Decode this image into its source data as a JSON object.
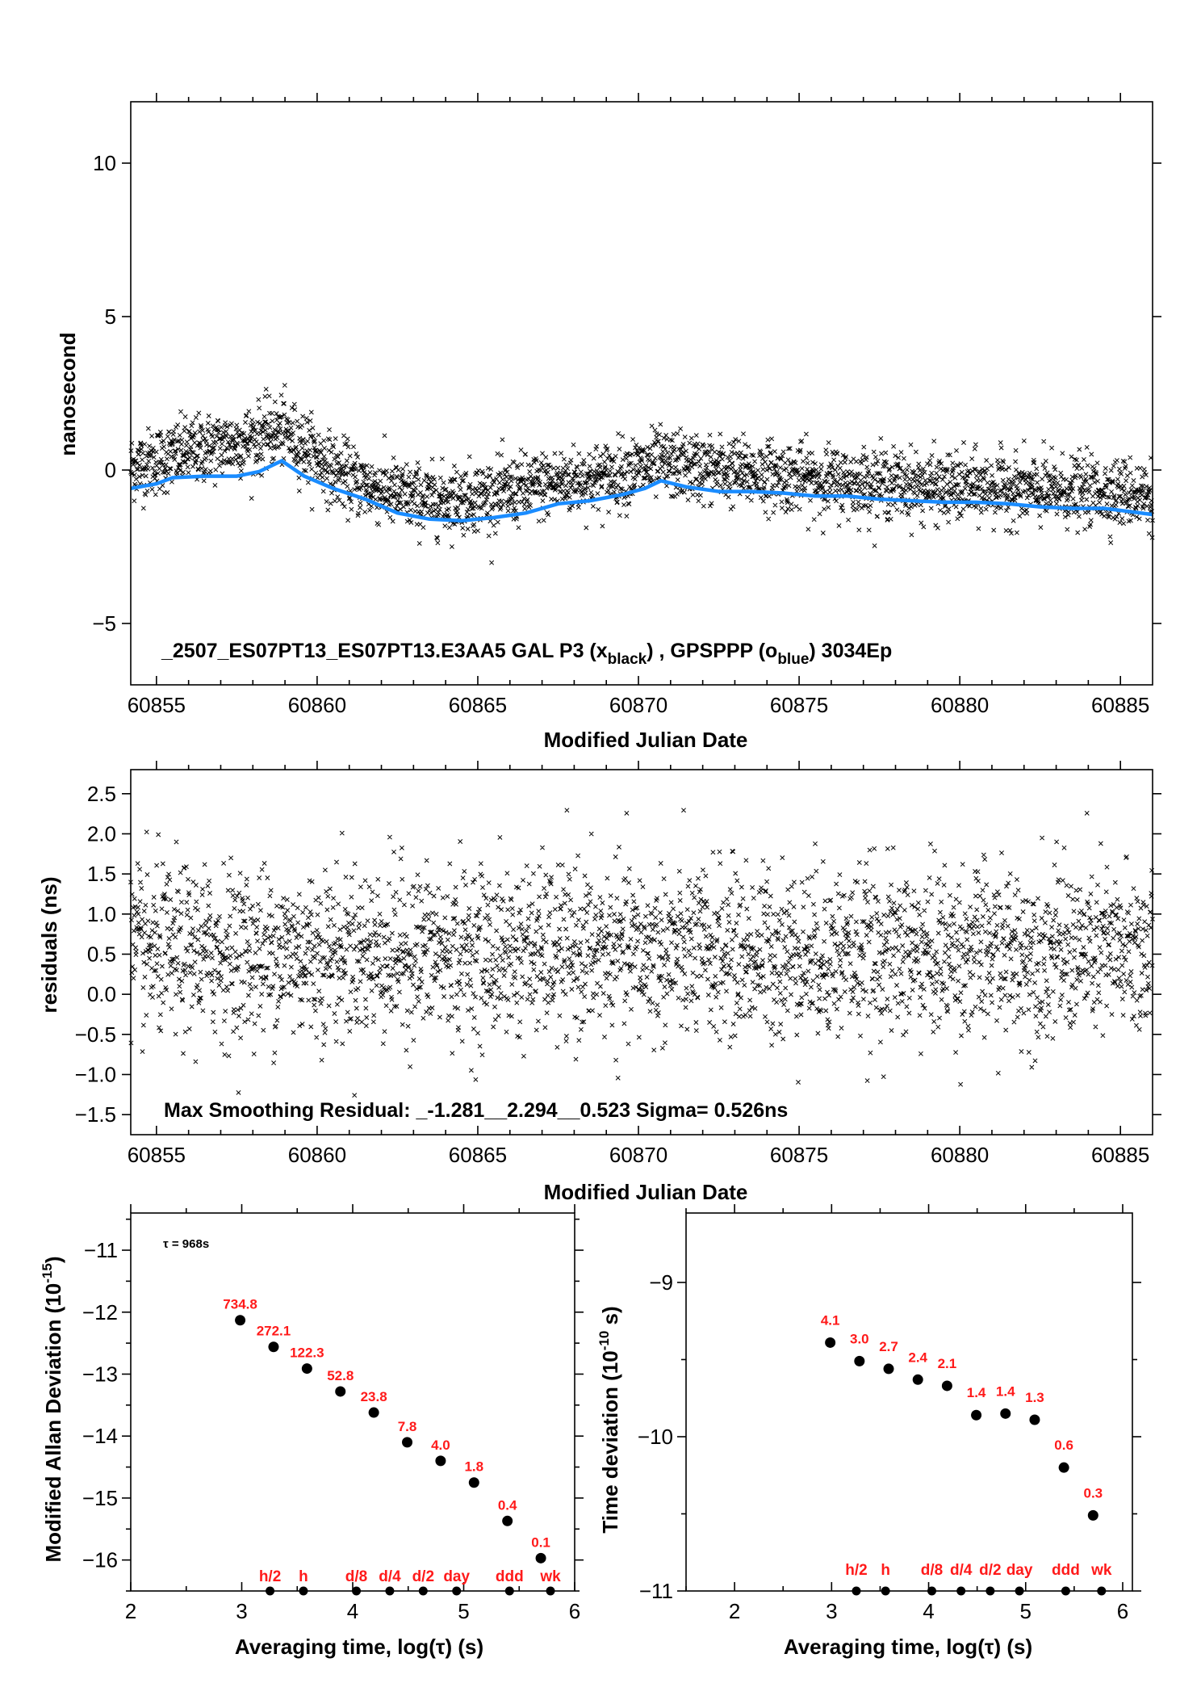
{
  "chart_data": [
    {
      "id": "phase",
      "type": "scatter",
      "xlabel": "Modified Julian Date",
      "ylabel": "nanosecond",
      "xlim": [
        60854.2,
        60886.0
      ],
      "ylim": [
        -7,
        12
      ],
      "x_ticks": [
        60855,
        60860,
        60865,
        60870,
        60875,
        60880,
        60885
      ],
      "x_tick_labels": [
        "60855",
        "60860",
        "60865",
        "60870",
        "60875",
        "60880",
        "60885"
      ],
      "y_ticks": [
        -5,
        0,
        5,
        10
      ],
      "y_tick_labels": [
        "−5",
        "0",
        "5",
        "10"
      ],
      "annotation": {
        "prefix": "_2507_ES07PT13_ES07PT13.E3AA5     GAL P3 (x",
        "sub1": "black",
        "mid": ") ,  GPSPPP (o",
        "sub2": "blue",
        "suffix": ")  3034Ep"
      },
      "series": [
        {
          "marker": "x",
          "color": "#000000",
          "approx_points": 2960,
          "trend_x": [
            60854.2,
            60855,
            60856,
            60857,
            60858,
            60858.9,
            60859.6,
            60860.5,
            60861.5,
            60862.5,
            60863.5,
            60864.5,
            60865.5,
            60866.5,
            60867.5,
            60868.5,
            60869.5,
            60870.6,
            60871.5,
            60872.5,
            60873.5,
            60874.5,
            60875.5,
            60876.5,
            60877.5,
            60878.5,
            60879.5,
            60880.5,
            60881.5,
            60882.5,
            60883.5,
            60884.5,
            60886.0
          ],
          "trend_y": [
            0.1,
            0.3,
            0.6,
            0.8,
            1.0,
            1.3,
            0.8,
            0.0,
            -0.5,
            -0.8,
            -1.0,
            -0.9,
            -0.8,
            -0.6,
            -0.4,
            -0.3,
            -0.1,
            0.2,
            0.1,
            0.0,
            -0.1,
            -0.2,
            -0.3,
            -0.4,
            -0.4,
            -0.5,
            -0.6,
            -0.6,
            -0.6,
            -0.7,
            -0.7,
            -0.7,
            -0.8
          ],
          "spread": 0.55
        },
        {
          "marker": "o",
          "color": "#1a8cff",
          "x": [
            60854.2,
            60855,
            60855.5,
            60856.5,
            60857.5,
            60858.2,
            60858.9,
            60859.6,
            60860.5,
            60861.5,
            60862.5,
            60863.5,
            60864.5,
            60865.5,
            60866.5,
            60867.5,
            60868.5,
            60869.5,
            60870.2,
            60870.7,
            60871.5,
            60872.5,
            60873.5,
            60874.5,
            60875.5,
            60876.5,
            60877.5,
            60878.5,
            60879.5,
            60880.5,
            60881.5,
            60882.5,
            60883.5,
            60884.5,
            60886.0
          ],
          "y": [
            -0.6,
            -0.45,
            -0.25,
            -0.2,
            -0.2,
            -0.05,
            0.3,
            -0.2,
            -0.6,
            -0.95,
            -1.4,
            -1.6,
            -1.65,
            -1.55,
            -1.4,
            -1.1,
            -1.0,
            -0.8,
            -0.6,
            -0.35,
            -0.55,
            -0.7,
            -0.7,
            -0.75,
            -0.85,
            -0.85,
            -0.95,
            -1.0,
            -1.05,
            -1.05,
            -1.1,
            -1.2,
            -1.25,
            -1.25,
            -1.45
          ]
        }
      ]
    },
    {
      "id": "residuals",
      "type": "scatter",
      "xlabel": "Modified Julian Date",
      "ylabel": "residuals (ns)",
      "xlim": [
        60854.2,
        60886.0
      ],
      "ylim": [
        -1.75,
        2.8
      ],
      "x_ticks": [
        60855,
        60860,
        60865,
        60870,
        60875,
        60880,
        60885
      ],
      "x_tick_labels": [
        "60855",
        "60860",
        "60865",
        "60870",
        "60875",
        "60880",
        "60885"
      ],
      "y_ticks": [
        -1.5,
        -1.0,
        -0.5,
        0.0,
        0.5,
        1.0,
        1.5,
        2.0,
        2.5
      ],
      "y_tick_labels": [
        "−1.5",
        "−1.0",
        "−0.5",
        "0.0",
        "0.5",
        "1.0",
        "1.5",
        "2.0",
        "2.5"
      ],
      "annotation": "Max Smoothing Residual: _-1.281__2.294__0.523  Sigma= 0.526ns",
      "series": [
        {
          "marker": "x",
          "color": "#000000",
          "approx_points": 2960,
          "center": 0.52,
          "sigma": 0.526,
          "min": -1.281,
          "max": 2.294
        }
      ]
    },
    {
      "id": "mdev",
      "type": "scatter",
      "xlabel": "Averaging time, log(τ) (s)",
      "ylabel_main": "Modified Allan Deviation (10",
      "ylabel_sup": "-15",
      "ylabel_end": ")",
      "xlim": [
        2,
        6
      ],
      "ylim": [
        -16.5,
        -10.4
      ],
      "x_ticks": [
        2,
        3,
        4,
        5,
        6
      ],
      "x_tick_labels": [
        "2",
        "3",
        "4",
        "5",
        "6"
      ],
      "y_ticks": [
        -16,
        -15,
        -14,
        -13,
        -12,
        -11
      ],
      "y_tick_labels": [
        "−16",
        "−15",
        "−14",
        "−13",
        "−12",
        "−11"
      ],
      "tau_label": "τ = 968s",
      "x": [
        2.986,
        3.287,
        3.588,
        3.889,
        4.19,
        4.491,
        4.792,
        5.093,
        5.394,
        5.695
      ],
      "y": [
        -12.13,
        -12.56,
        -12.91,
        -13.28,
        -13.62,
        -14.1,
        -14.4,
        -14.75,
        -15.37,
        -15.97
      ],
      "point_labels": [
        "734.8",
        "272.1",
        "122.3",
        "52.8",
        "23.8",
        "7.8",
        "4.0",
        "1.8",
        "0.4",
        "0.1"
      ],
      "markers": [
        {
          "label": "h/2",
          "x": 3.255
        },
        {
          "label": "h",
          "x": 3.556
        },
        {
          "label": "d/8",
          "x": 4.033
        },
        {
          "label": "d/4",
          "x": 4.334
        },
        {
          "label": "d/2",
          "x": 4.635
        },
        {
          "label": "day",
          "x": 4.936
        },
        {
          "label": "ddd",
          "x": 5.413
        },
        {
          "label": "wk",
          "x": 5.782
        }
      ]
    },
    {
      "id": "tdev",
      "type": "scatter",
      "xlabel": "Averaging time, log(τ) (s)",
      "ylabel_main": "Time deviation (10",
      "ylabel_sup": "-10",
      "ylabel_end": " s)",
      "xlim": [
        1.5,
        6.1
      ],
      "ylim": [
        -11,
        -8.55
      ],
      "x_ticks": [
        2,
        3,
        4,
        5,
        6
      ],
      "x_tick_labels": [
        "2",
        "3",
        "4",
        "5",
        "6"
      ],
      "y_ticks": [
        -11,
        -10,
        -9
      ],
      "y_tick_labels": [
        "−11",
        "−10",
        "−9"
      ],
      "x": [
        2.986,
        3.287,
        3.588,
        3.889,
        4.19,
        4.491,
        4.792,
        5.093,
        5.394,
        5.695
      ],
      "y": [
        -9.39,
        -9.51,
        -9.56,
        -9.63,
        -9.67,
        -9.86,
        -9.85,
        -9.89,
        -10.2,
        -10.51
      ],
      "point_labels": [
        "4.1",
        "3.0",
        "2.7",
        "2.4",
        "2.1",
        "1.4",
        "1.4",
        "1.3",
        "0.6",
        "0.3"
      ],
      "markers": [
        {
          "label": "h/2",
          "x": 3.255
        },
        {
          "label": "h",
          "x": 3.556
        },
        {
          "label": "d/8",
          "x": 4.033
        },
        {
          "label": "d/4",
          "x": 4.334
        },
        {
          "label": "d/2",
          "x": 4.635
        },
        {
          "label": "day",
          "x": 4.936
        },
        {
          "label": "ddd",
          "x": 5.413
        },
        {
          "label": "wk",
          "x": 5.782
        }
      ]
    }
  ]
}
